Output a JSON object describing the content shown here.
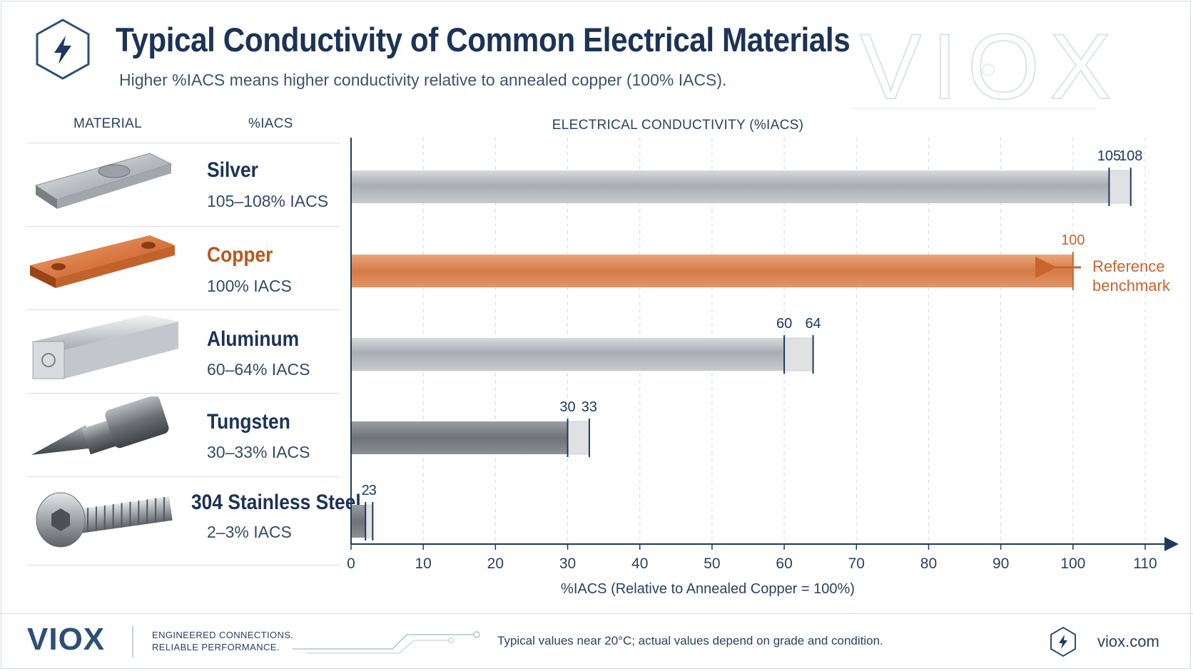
{
  "header": {
    "title": "Typical Conductivity of Common Electrical Materials",
    "subtitle": "Higher %IACS means higher conductivity relative to annealed copper (100% IACS).",
    "watermark_text": "VIOX"
  },
  "table": {
    "material_header": "MATERIAL",
    "iacs_header": "%IACS",
    "rows": [
      {
        "name": "Silver",
        "value_text": "105–108% IACS",
        "name_color": "#1b3356"
      },
      {
        "name": "Copper",
        "value_text": "100% IACS",
        "name_color": "#b8561f"
      },
      {
        "name": "Aluminum",
        "value_text": "60–64% IACS",
        "name_color": "#1b3356"
      },
      {
        "name": "Tungsten",
        "value_text": "30–33% IACS",
        "name_color": "#1b3356"
      },
      {
        "name": "304 Stainless Steel",
        "value_text": "2–3% IACS",
        "name_color": "#1b3356"
      }
    ]
  },
  "chart_data": {
    "type": "bar",
    "orientation": "horizontal-range",
    "title": "ELECTRICAL CONDUCTIVITY (%IACS)",
    "xlabel": "%IACS (Relative to Annealed Copper = 100%)",
    "xlim": [
      0,
      110
    ],
    "xticks": [
      0,
      10,
      20,
      30,
      40,
      50,
      60,
      70,
      80,
      90,
      100,
      110
    ],
    "grid": "vertical dashed",
    "categories": [
      "Silver",
      "Copper",
      "Aluminum",
      "Tungsten",
      "304 Stainless Steel"
    ],
    "series": [
      {
        "low": 105,
        "high": 108,
        "labels": [
          "105",
          "108"
        ],
        "color": "#9a9ea3"
      },
      {
        "low": 100,
        "high": 100,
        "labels": [
          "100"
        ],
        "color": "#d2824f"
      },
      {
        "low": 60,
        "high": 64,
        "labels": [
          "60",
          "64"
        ],
        "color": "#9a9ea3"
      },
      {
        "low": 30,
        "high": 33,
        "labels": [
          "30",
          "33"
        ],
        "color": "#7f8388"
      },
      {
        "low": 2,
        "high": 3,
        "labels": [
          "2",
          "3"
        ],
        "color": "#8c9095"
      }
    ],
    "annotation": {
      "text_line1": "Reference",
      "text_line2": "benchmark",
      "target": "Copper",
      "color": "#c9642b"
    },
    "colors": {
      "axis": "#1d3a60",
      "tick_line": "#1d3a60",
      "copper": "#c9642b"
    }
  },
  "footer": {
    "brand": "VIOX",
    "tagline_1": "ENGINEERED CONNECTIONS.",
    "tagline_2": "RELIABLE PERFORMANCE.",
    "note": "Typical values near 20°C; actual values depend on grade and condition.",
    "url": "viox.com"
  }
}
